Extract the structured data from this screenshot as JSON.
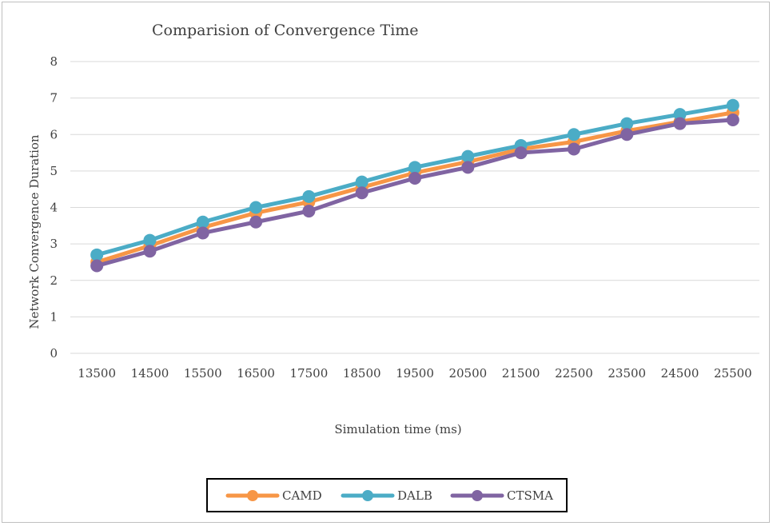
{
  "chart_data": {
    "type": "line",
    "title": "Comparision of Convergence  Time",
    "xlabel": "Simulation time (ms)",
    "ylabel": "Network Convergence Duration",
    "categories": [
      "13500",
      "14500",
      "15500",
      "16500",
      "17500",
      "18500",
      "19500",
      "20500",
      "21500",
      "22500",
      "23500",
      "24500",
      "25500"
    ],
    "ylim": [
      0,
      8
    ],
    "yticks": [
      "0",
      "1",
      "2",
      "3",
      "4",
      "5",
      "6",
      "7",
      "8"
    ],
    "grid": true,
    "legend_position": "bottom",
    "series": [
      {
        "name": "CAMD",
        "color": "#f79646",
        "values": [
          2.5,
          2.95,
          3.45,
          3.85,
          4.15,
          4.55,
          4.95,
          5.25,
          5.6,
          5.8,
          6.1,
          6.35,
          6.6
        ]
      },
      {
        "name": "DALB",
        "color": "#4bacc6",
        "values": [
          2.7,
          3.1,
          3.6,
          4.0,
          4.3,
          4.7,
          5.1,
          5.4,
          5.7,
          6.0,
          6.3,
          6.55,
          6.8
        ]
      },
      {
        "name": "CTSMA",
        "color": "#8064a2",
        "values": [
          2.4,
          2.8,
          3.3,
          3.6,
          3.9,
          4.4,
          4.8,
          5.1,
          5.5,
          5.6,
          6.0,
          6.3,
          6.4
        ]
      }
    ]
  }
}
